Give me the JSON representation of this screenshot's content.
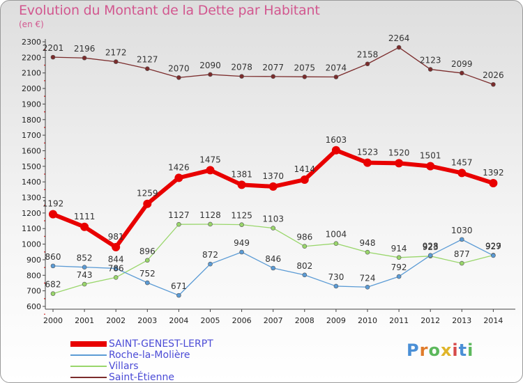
{
  "header": {
    "title": "Evolution du Montant de la Dette par Habitant",
    "subtitle": "(en €)"
  },
  "logo": {
    "text": "Proxiti",
    "letters": [
      "P",
      "r",
      "o",
      "x",
      "i",
      "t",
      "i"
    ],
    "colors": [
      "#4a8fd6",
      "#e07b2a",
      "#5cb85c",
      "#e0b52a",
      "#d64a4a",
      "#4a8fd6",
      "#5cb85c"
    ]
  },
  "chart_data": {
    "type": "line",
    "title": "Evolution du Montant de la Dette par Habitant",
    "subtitle": "(en €)",
    "xlabel": "",
    "ylabel": "",
    "x": [
      "2000",
      "2001",
      "2002",
      "2003",
      "2004",
      "2005",
      "2006",
      "2007",
      "2008",
      "2009",
      "2010",
      "2011",
      "2012",
      "2013",
      "2014"
    ],
    "ylim": [
      600,
      2300
    ],
    "yticks": [
      600,
      700,
      800,
      900,
      1000,
      1100,
      1200,
      1300,
      1400,
      1500,
      1600,
      1700,
      1800,
      1900,
      2000,
      2100,
      2200,
      2300
    ],
    "grid": false,
    "legend_position": "bottom-left",
    "series": [
      {
        "name": "SAINT-GENEST-LERPT",
        "color": "#e80000",
        "values": [
          1192,
          1111,
          981,
          1259,
          1426,
          1475,
          1381,
          1370,
          1414,
          1603,
          1523,
          1520,
          1501,
          1457,
          1392
        ],
        "labels": [
          "1192",
          "1111",
          "981",
          "1259",
          "1426",
          "1475",
          "1381",
          "1370",
          "1414",
          "1603",
          "1523",
          "1520",
          "1501",
          "1457",
          "1392"
        ]
      },
      {
        "name": "Roche-la-Molière",
        "color": "#5b9bd5",
        "values": [
          860,
          852,
          844,
          752,
          671,
          872,
          949,
          846,
          802,
          730,
          724,
          792,
          928,
          1030,
          927
        ],
        "labels": [
          "860",
          "852",
          "844",
          "752",
          "671",
          "872",
          "949",
          "846",
          "802",
          "730",
          "724",
          "792",
          "928",
          "1030",
          "927"
        ]
      },
      {
        "name": "Villars",
        "color": "#99d66b",
        "values": [
          682,
          743,
          786,
          896,
          1127,
          1128,
          1125,
          1103,
          986,
          1004,
          948,
          914,
          923,
          877,
          929
        ],
        "labels": [
          "682",
          "743",
          "786",
          "896",
          "1127",
          "1128",
          "1125",
          "1103",
          "986",
          "1004",
          "948",
          "914",
          "923",
          "877",
          "929"
        ]
      },
      {
        "name": "Saint-Étienne",
        "color": "#7b2c2c",
        "values": [
          2201,
          2196,
          2172,
          2127,
          2070,
          2090,
          2078,
          2077,
          2075,
          2074,
          2158,
          2264,
          2123,
          2099,
          2026
        ],
        "labels": [
          "2201",
          "2196",
          "2172",
          "2127",
          "2070",
          "2090",
          "2078",
          "2077",
          "2075",
          "2074",
          "2158",
          "2264",
          "2123",
          "2099",
          "2026"
        ]
      }
    ]
  }
}
